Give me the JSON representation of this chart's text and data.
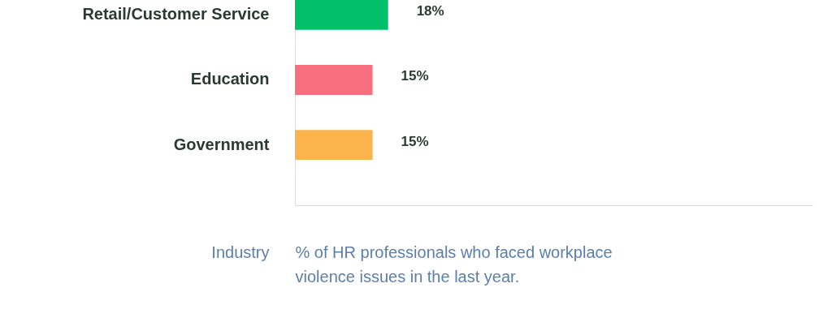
{
  "chart_data": {
    "type": "bar",
    "orientation": "horizontal",
    "categories": [
      "Retail/Customer Service",
      "Education",
      "Government"
    ],
    "values": [
      18,
      15,
      15
    ],
    "colors": [
      "#00c16a",
      "#f76f7f",
      "#fbb34c"
    ],
    "value_labels": [
      "18%",
      "15%",
      "15%"
    ],
    "xlim": [
      0,
      100
    ],
    "tick_labels": "y",
    "grid": false,
    "xlabel": "% of HR professionals who faced workplace violence issues in the last year.",
    "ylabel": "Industry"
  }
}
